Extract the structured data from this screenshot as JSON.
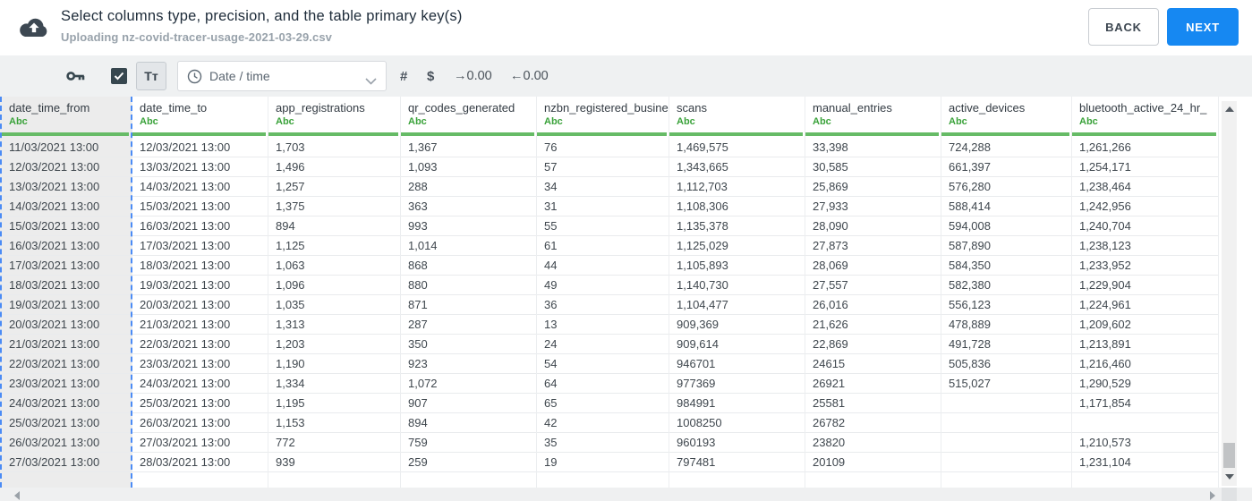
{
  "header": {
    "title": "Select columns type, precision, and the table primary key(s)",
    "subtitle": "Uploading nz-covid-tracer-usage-2021-03-29.csv",
    "back_label": "BACK",
    "next_label": "NEXT"
  },
  "toolbar": {
    "primary_key_icon": "key-icon",
    "checkbox_checked": true,
    "text_type_label": "Tᴛ",
    "type_dropdown": {
      "icon": "clock-icon",
      "selected_option": "Date / time"
    },
    "number_type_label": "#",
    "currency_type_label": "$",
    "increase_precision_label": "→0.00",
    "decrease_precision_label": "←0.00"
  },
  "table": {
    "columns": [
      {
        "name": "date_time_from",
        "type": "Abc",
        "selected": true
      },
      {
        "name": "date_time_to",
        "type": "Abc",
        "selected": false
      },
      {
        "name": "app_registrations",
        "type": "Abc",
        "selected": false
      },
      {
        "name": "qr_codes_generated",
        "type": "Abc",
        "selected": false
      },
      {
        "name": "nzbn_registered_busine",
        "type": "Abc",
        "selected": false
      },
      {
        "name": "scans",
        "type": "Abc",
        "selected": false
      },
      {
        "name": "manual_entries",
        "type": "Abc",
        "selected": false
      },
      {
        "name": "active_devices",
        "type": "Abc",
        "selected": false
      },
      {
        "name": "bluetooth_active_24_hr_",
        "type": "Abc",
        "selected": false
      }
    ],
    "rows": [
      [
        "11/03/2021 13:00",
        "12/03/2021 13:00",
        "1,703",
        "1,367",
        "76",
        "1,469,575",
        "33,398",
        "724,288",
        "1,261,266"
      ],
      [
        "12/03/2021 13:00",
        "13/03/2021 13:00",
        "1,496",
        "1,093",
        "57",
        "1,343,665",
        "30,585",
        "661,397",
        "1,254,171"
      ],
      [
        "13/03/2021 13:00",
        "14/03/2021 13:00",
        "1,257",
        "288",
        "34",
        "1,112,703",
        "25,869",
        "576,280",
        "1,238,464"
      ],
      [
        "14/03/2021 13:00",
        "15/03/2021 13:00",
        "1,375",
        "363",
        "31",
        "1,108,306",
        "27,933",
        "588,414",
        "1,242,956"
      ],
      [
        "15/03/2021 13:00",
        "16/03/2021 13:00",
        "894",
        "993",
        "55",
        "1,135,378",
        "28,090",
        "594,008",
        "1,240,704"
      ],
      [
        "16/03/2021 13:00",
        "17/03/2021 13:00",
        "1,125",
        "1,014",
        "61",
        "1,125,029",
        "27,873",
        "587,890",
        "1,238,123"
      ],
      [
        "17/03/2021 13:00",
        "18/03/2021 13:00",
        "1,063",
        "868",
        "44",
        "1,105,893",
        "28,069",
        "584,350",
        "1,233,952"
      ],
      [
        "18/03/2021 13:00",
        "19/03/2021 13:00",
        "1,096",
        "880",
        "49",
        "1,140,730",
        "27,557",
        "582,380",
        "1,229,904"
      ],
      [
        "19/03/2021 13:00",
        "20/03/2021 13:00",
        "1,035",
        "871",
        "36",
        "1,104,477",
        "26,016",
        "556,123",
        "1,224,961"
      ],
      [
        "20/03/2021 13:00",
        "21/03/2021 13:00",
        "1,313",
        "287",
        "13",
        "909,369",
        "21,626",
        "478,889",
        "1,209,602"
      ],
      [
        "21/03/2021 13:00",
        "22/03/2021 13:00",
        "1,203",
        "350",
        "24",
        "909,614",
        "22,869",
        "491,728",
        "1,213,891"
      ],
      [
        "22/03/2021 13:00",
        "23/03/2021 13:00",
        "1,190",
        "923",
        "54",
        "946701",
        "24615",
        "505,836",
        "1,216,460"
      ],
      [
        "23/03/2021 13:00",
        "24/03/2021 13:00",
        "1,334",
        "1,072",
        "64",
        "977369",
        "26921",
        "515,027",
        "1,290,529"
      ],
      [
        "24/03/2021 13:00",
        "25/03/2021 13:00",
        "1,195",
        "907",
        "65",
        "984991",
        "25581",
        "",
        "1,171,854"
      ],
      [
        "25/03/2021 13:00",
        "26/03/2021 13:00",
        "1,153",
        "894",
        "42",
        "1008250",
        "26782",
        "",
        ""
      ],
      [
        "26/03/2021 13:00",
        "27/03/2021 13:00",
        "772",
        "759",
        "35",
        "960193",
        "23820",
        "",
        "1,210,573"
      ],
      [
        "27/03/2021 13:00",
        "28/03/2021 13:00",
        "939",
        "259",
        "19",
        "797481",
        "20109",
        "",
        "1,231,104"
      ]
    ]
  },
  "colors": {
    "primary_blue": "#1688f2",
    "green_type_badge": "#3aa23a",
    "green_accent_bar": "#66bb66",
    "selected_column_bg": "#ececec",
    "selection_dashed_blue": "#4b8bf5",
    "dark_icon": "#37474f"
  }
}
